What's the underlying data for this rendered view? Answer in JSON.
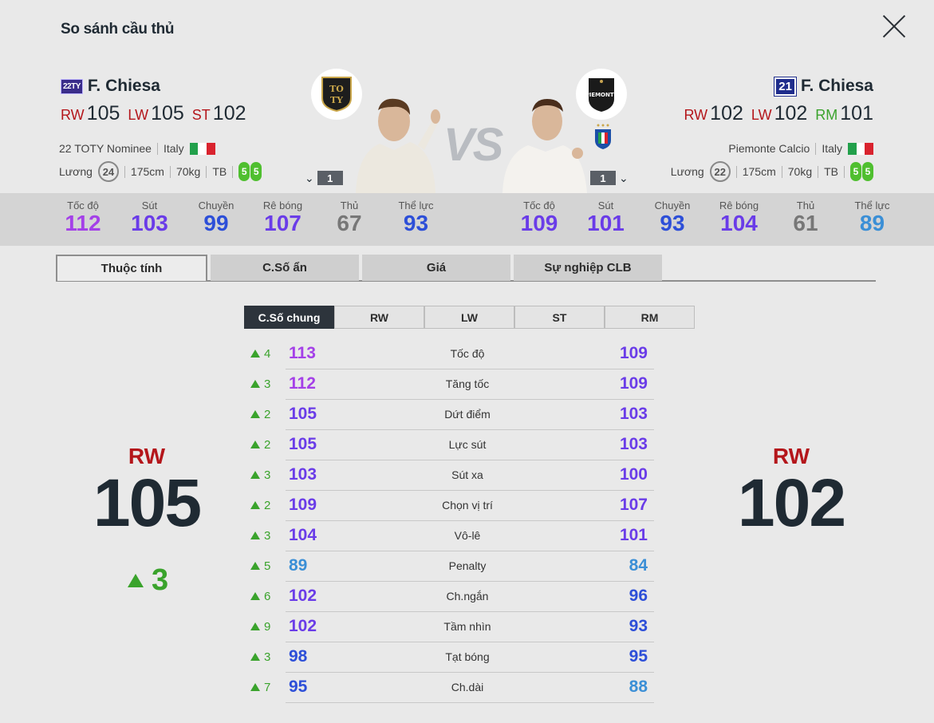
{
  "header": {
    "title": "So sánh cầu thủ"
  },
  "left": {
    "season_badge": "22TY",
    "name": "F. Chiesa",
    "positions": [
      {
        "pos": "RW",
        "val": "105"
      },
      {
        "pos": "LW",
        "val": "105"
      },
      {
        "pos": "ST",
        "val": "102"
      }
    ],
    "team": "22 TOTY Nominee",
    "country": "Italy",
    "salary_label": "Lương",
    "salary": "24",
    "height": "175cm",
    "weight": "70kg",
    "body": "TB",
    "foot_left": "5",
    "foot_right": "5",
    "level": "1",
    "stats": [
      {
        "label": "Tốc độ",
        "value": "112",
        "color": "#a440e8"
      },
      {
        "label": "Sút",
        "value": "103",
        "color": "#6a3ce8"
      },
      {
        "label": "Chuyền",
        "value": "99",
        "color": "#2d4fd8"
      },
      {
        "label": "Rê bóng",
        "value": "107",
        "color": "#6a3ce8"
      },
      {
        "label": "Thủ",
        "value": "67",
        "color": "#777777"
      },
      {
        "label": "Thể lực",
        "value": "93",
        "color": "#2d4fd8"
      }
    ],
    "overall_pos": "RW",
    "overall": "105",
    "delta": "3"
  },
  "right": {
    "season_badge": "21",
    "name": "F. Chiesa",
    "positions": [
      {
        "pos": "RW",
        "val": "102"
      },
      {
        "pos": "LW",
        "val": "102"
      },
      {
        "pos": "RM",
        "val": "101"
      }
    ],
    "team": "Piemonte Calcio",
    "country": "Italy",
    "salary_label": "Lương",
    "salary": "22",
    "height": "175cm",
    "weight": "70kg",
    "body": "TB",
    "foot_left": "5",
    "foot_right": "5",
    "level": "1",
    "stats": [
      {
        "label": "Tốc độ",
        "value": "109",
        "color": "#6a3ce8"
      },
      {
        "label": "Sút",
        "value": "101",
        "color": "#6a3ce8"
      },
      {
        "label": "Chuyền",
        "value": "93",
        "color": "#2d4fd8"
      },
      {
        "label": "Rê bóng",
        "value": "104",
        "color": "#6a3ce8"
      },
      {
        "label": "Thủ",
        "value": "61",
        "color": "#777777"
      },
      {
        "label": "Thể lực",
        "value": "89",
        "color": "#3b8fd6"
      }
    ],
    "overall_pos": "RW",
    "overall": "102"
  },
  "vs": "VS",
  "tabs": [
    "Thuộc tính",
    "C.Số ẩn",
    "Giá",
    "Sự nghiệp CLB"
  ],
  "subtabs": [
    "C.Số chung",
    "RW",
    "LW",
    "ST",
    "RM"
  ],
  "attributes": [
    {
      "diff": "4",
      "name": "Tốc độ",
      "left": "113",
      "right": "109",
      "lc": "#a440e8",
      "rc": "#6a3ce8"
    },
    {
      "diff": "3",
      "name": "Tăng tốc",
      "left": "112",
      "right": "109",
      "lc": "#a440e8",
      "rc": "#6a3ce8"
    },
    {
      "diff": "2",
      "name": "Dứt điểm",
      "left": "105",
      "right": "103",
      "lc": "#6a3ce8",
      "rc": "#6a3ce8"
    },
    {
      "diff": "2",
      "name": "Lực sút",
      "left": "105",
      "right": "103",
      "lc": "#6a3ce8",
      "rc": "#6a3ce8"
    },
    {
      "diff": "3",
      "name": "Sút xa",
      "left": "103",
      "right": "100",
      "lc": "#6a3ce8",
      "rc": "#6a3ce8"
    },
    {
      "diff": "2",
      "name": "Chọn vị trí",
      "left": "109",
      "right": "107",
      "lc": "#6a3ce8",
      "rc": "#6a3ce8"
    },
    {
      "diff": "3",
      "name": "Vô-lê",
      "left": "104",
      "right": "101",
      "lc": "#6a3ce8",
      "rc": "#6a3ce8"
    },
    {
      "diff": "5",
      "name": "Penalty",
      "left": "89",
      "right": "84",
      "lc": "#3b8fd6",
      "rc": "#3b8fd6"
    },
    {
      "diff": "6",
      "name": "Ch.ngắn",
      "left": "102",
      "right": "96",
      "lc": "#6a3ce8",
      "rc": "#2d4fd8"
    },
    {
      "diff": "9",
      "name": "Tầm nhìn",
      "left": "102",
      "right": "93",
      "lc": "#6a3ce8",
      "rc": "#2d4fd8"
    },
    {
      "diff": "3",
      "name": "Tạt bóng",
      "left": "98",
      "right": "95",
      "lc": "#2d4fd8",
      "rc": "#2d4fd8"
    },
    {
      "diff": "7",
      "name": "Ch.dài",
      "left": "95",
      "right": "88",
      "lc": "#2d4fd8",
      "rc": "#3b8fd6"
    }
  ]
}
